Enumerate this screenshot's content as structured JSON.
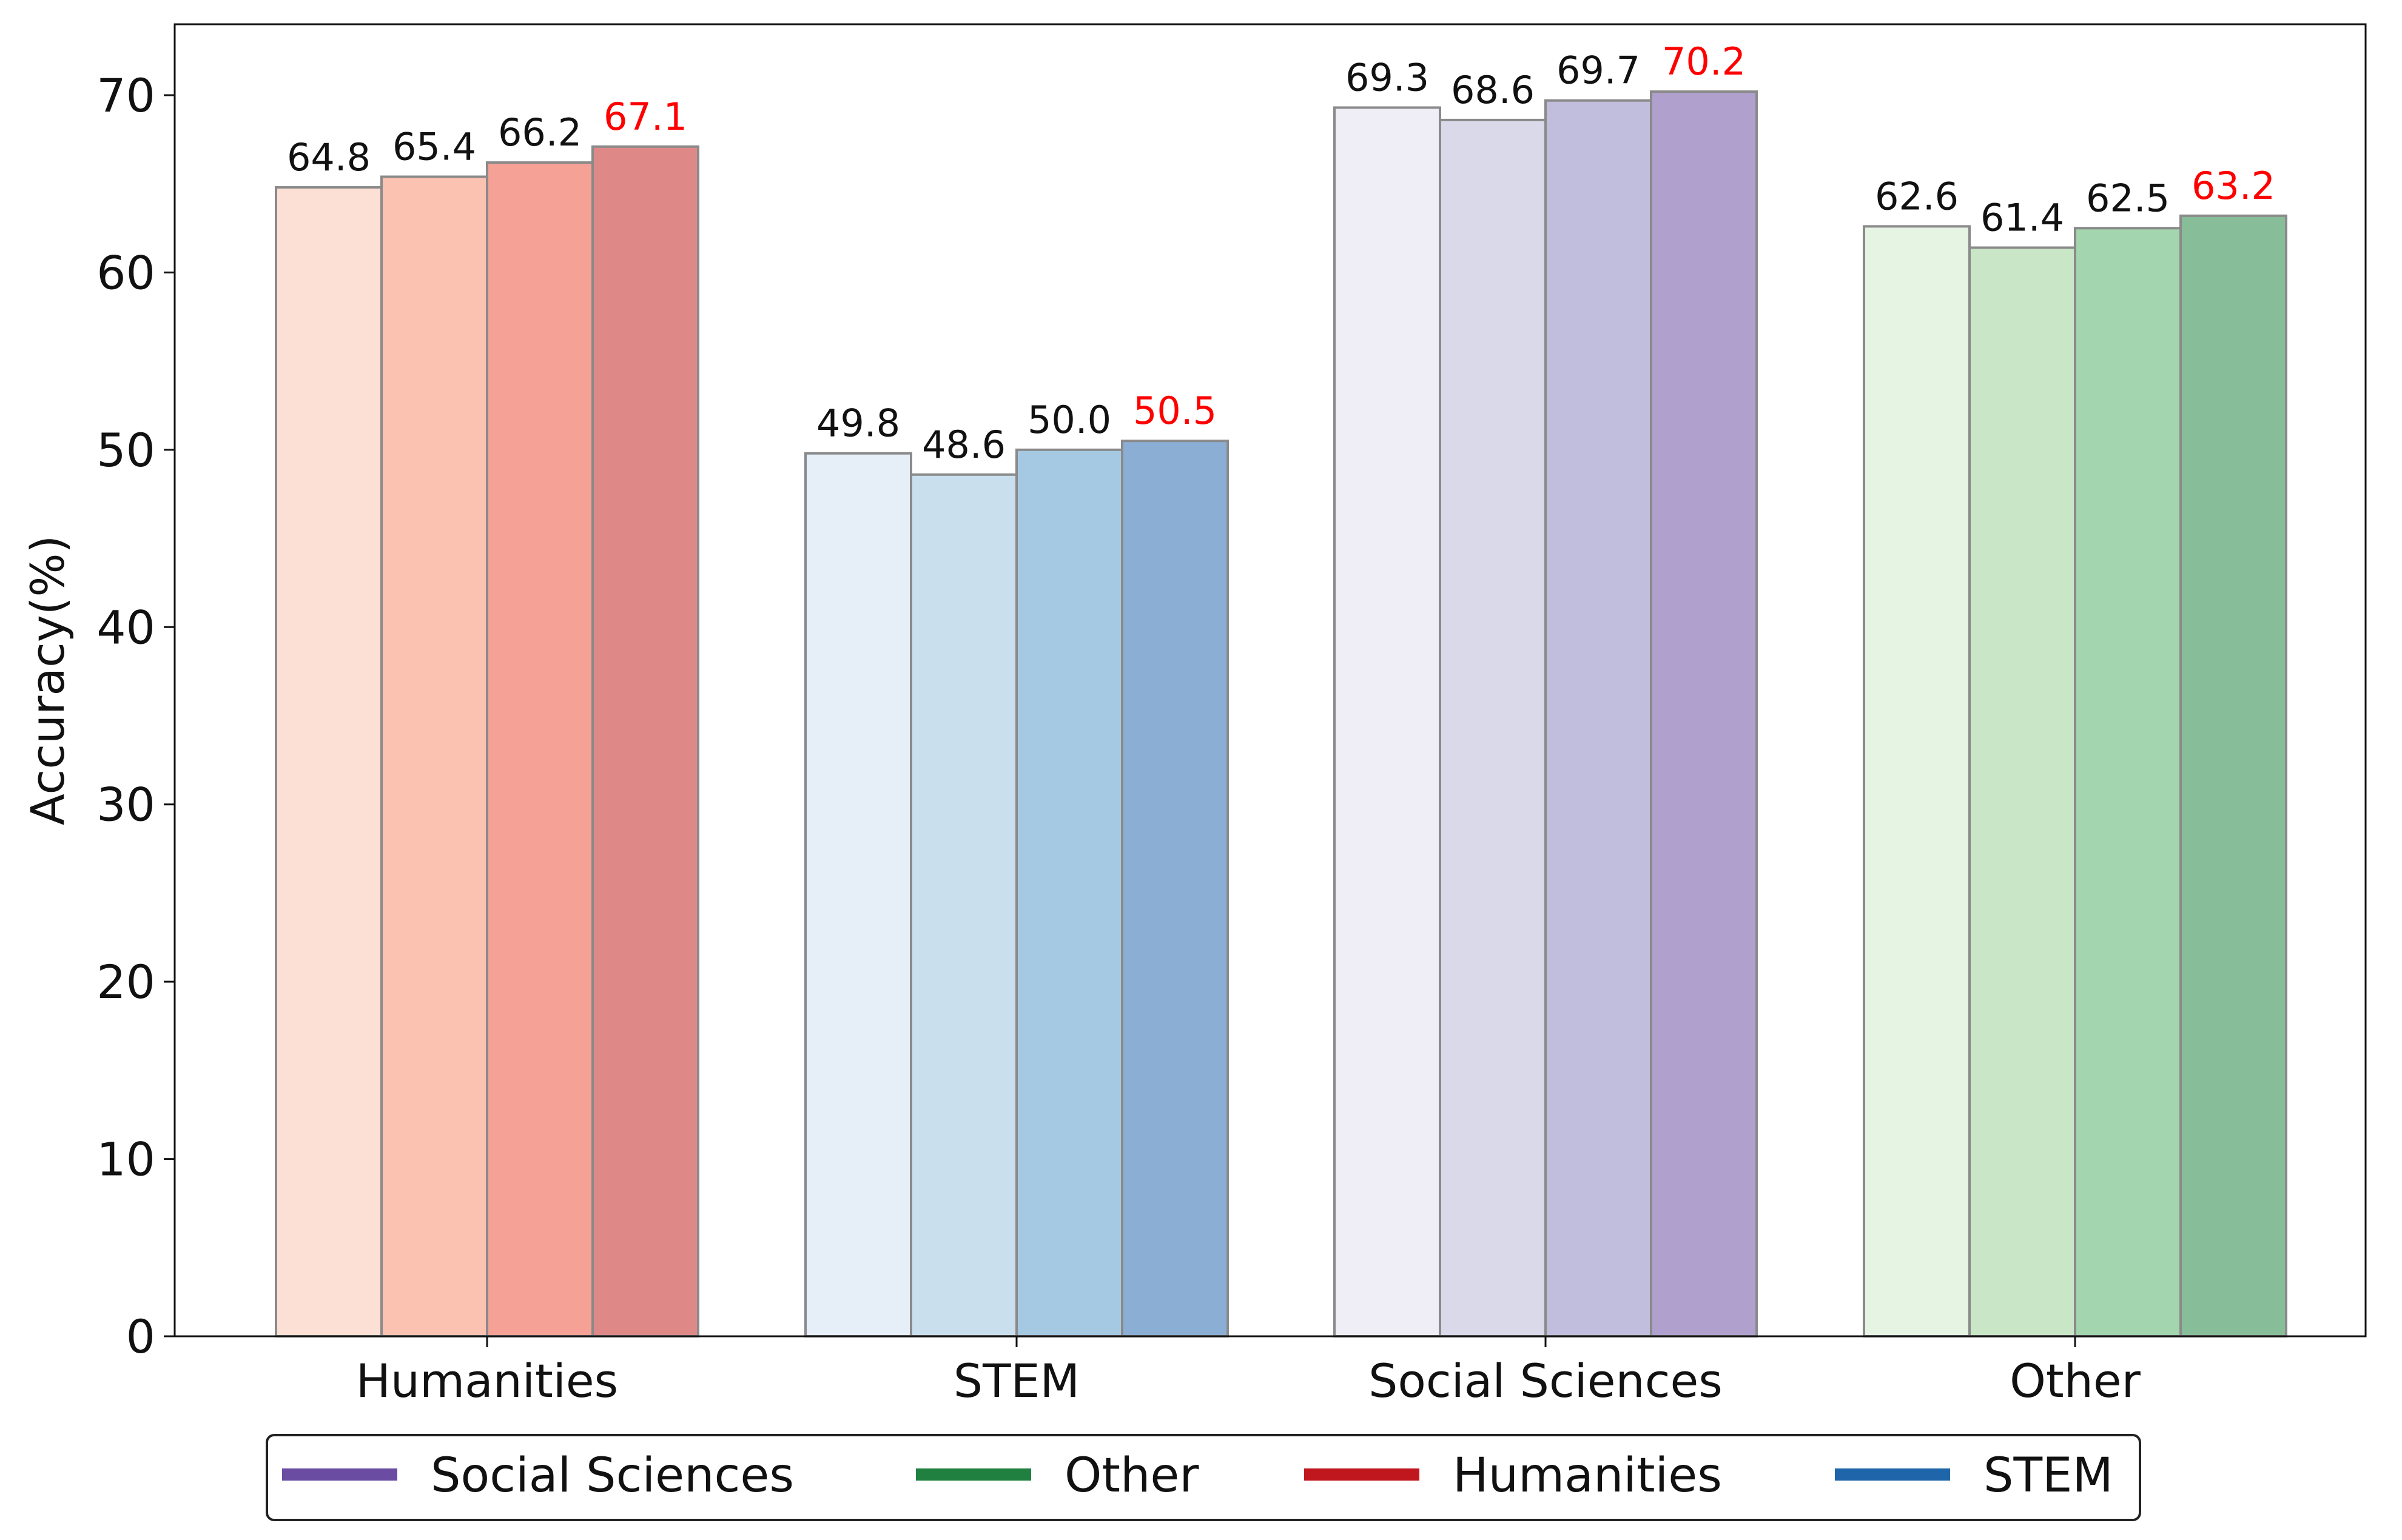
{
  "chart_data": {
    "type": "bar",
    "title": "",
    "xlabel": "",
    "ylabel": "Accuracy(%)",
    "ylim": [
      0,
      74
    ],
    "yticks": [
      0,
      10,
      20,
      30,
      40,
      50,
      60,
      70
    ],
    "grid": false,
    "legend_position": "bottom-center",
    "categories": [
      "Humanities",
      "STEM",
      "Social Sciences",
      "Other"
    ],
    "groups": [
      {
        "category": "Humanities",
        "values": [
          64.8,
          65.4,
          66.2,
          67.1
        ],
        "labels": [
          "64.8",
          "65.4",
          "66.2",
          "67.1"
        ],
        "colors": [
          "#fde0d5",
          "#fbc1b1",
          "#f6a195",
          "#df8888"
        ]
      },
      {
        "category": "STEM",
        "values": [
          49.8,
          48.6,
          50.0,
          50.5
        ],
        "labels": [
          "49.8",
          "48.6",
          "50.0",
          "50.5"
        ],
        "colors": [
          "#e6eef8",
          "#c9dfee",
          "#a6c9e3",
          "#8bafd4"
        ]
      },
      {
        "category": "Social Sciences",
        "values": [
          69.3,
          68.6,
          69.7,
          70.2
        ],
        "labels": [
          "69.3",
          "68.6",
          "69.7",
          "70.2"
        ],
        "colors": [
          "#efeef6",
          "#dad9ea",
          "#c1bddc",
          "#b0a0cd"
        ]
      },
      {
        "category": "Other",
        "values": [
          62.6,
          61.4,
          62.5,
          63.2
        ],
        "labels": [
          "62.6",
          "61.4",
          "62.5",
          "63.2"
        ],
        "colors": [
          "#e6f4e3",
          "#c9e7c6",
          "#a3d5ae",
          "#88bd99"
        ]
      }
    ],
    "highlight_color": "#ff0000",
    "label_color": "#111111",
    "bar_edge_color": "#8a8a8a",
    "legend": [
      {
        "name": "Social Sciences",
        "color": "#6a4ca3"
      },
      {
        "name": "Other",
        "color": "#1f8040"
      },
      {
        "name": "Humanities",
        "color": "#c0171f"
      },
      {
        "name": "STEM",
        "color": "#1f65aa"
      }
    ]
  }
}
